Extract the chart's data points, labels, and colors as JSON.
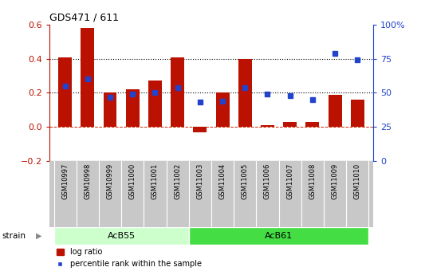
{
  "title": "GDS471 / 611",
  "samples": [
    "GSM10997",
    "GSM10998",
    "GSM10999",
    "GSM11000",
    "GSM11001",
    "GSM11002",
    "GSM11003",
    "GSM11004",
    "GSM11005",
    "GSM11006",
    "GSM11007",
    "GSM11008",
    "GSM11009",
    "GSM11010"
  ],
  "log_ratio": [
    0.41,
    0.58,
    0.2,
    0.22,
    0.27,
    0.41,
    -0.03,
    0.2,
    0.4,
    0.01,
    0.03,
    0.03,
    0.19,
    0.16
  ],
  "percentile_rank": [
    55,
    60,
    47,
    49,
    50,
    54,
    43,
    44,
    54,
    49,
    48,
    45,
    79,
    74
  ],
  "groups": [
    {
      "label": "AcB55",
      "start": 0,
      "end": 5,
      "color": "#ccffcc"
    },
    {
      "label": "AcB61",
      "start": 6,
      "end": 13,
      "color": "#44dd44"
    }
  ],
  "ylim_left": [
    -0.2,
    0.6
  ],
  "ylim_right": [
    0,
    100
  ],
  "yticks_left": [
    -0.2,
    0.0,
    0.2,
    0.4,
    0.6
  ],
  "yticks_right": [
    0,
    25,
    50,
    75,
    100
  ],
  "bar_color": "#bb1100",
  "dot_color": "#2244cc",
  "hline_color": "#cc2200",
  "dotted_lines": [
    0.2,
    0.4
  ],
  "legend_labels": [
    "log ratio",
    "percentile rank within the sample"
  ],
  "strain_label": "strain",
  "background_color": "#ffffff",
  "tick_area_color": "#c8c8c8"
}
